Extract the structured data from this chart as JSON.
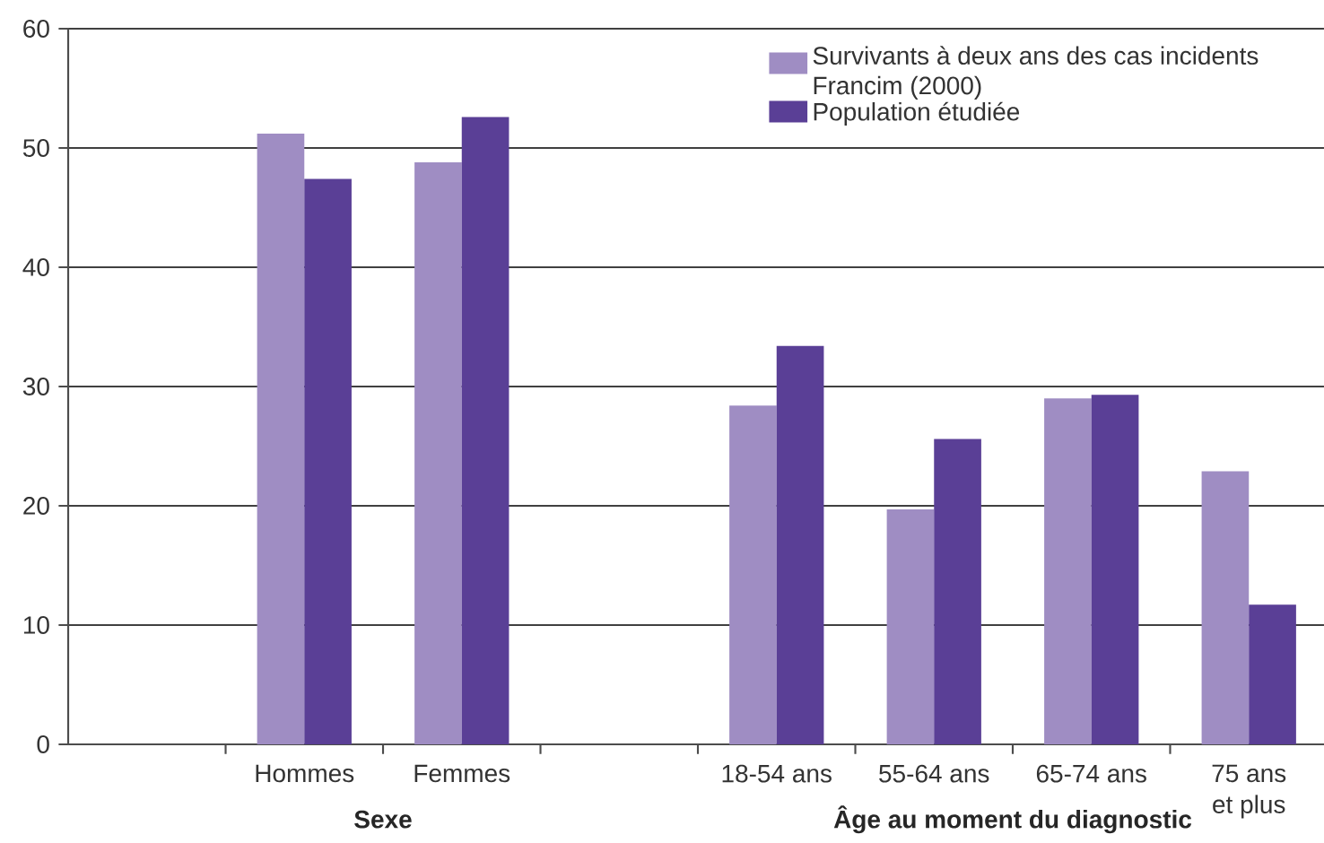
{
  "chart_data": {
    "type": "bar",
    "categories": [
      null,
      "Hommes",
      "Femmes",
      null,
      "18-54 ans",
      "55-64 ans",
      "65-74 ans",
      "75 ans et plus"
    ],
    "series": [
      {
        "name": "Survivants à deux ans des cas incidents Francim (2000)",
        "color": "#9f8dc3",
        "values": [
          null,
          51.2,
          48.8,
          null,
          28.4,
          19.7,
          29.0,
          22.9
        ]
      },
      {
        "name": "Population étudiée",
        "color": "#5a3f96",
        "values": [
          null,
          47.4,
          52.6,
          null,
          33.4,
          25.6,
          29.3,
          11.7
        ]
      }
    ],
    "annotations": [
      "Sexe",
      "Âge au moment du diagnostic"
    ],
    "ylim": [
      0,
      60
    ],
    "yticks": [
      0,
      10,
      20,
      30,
      40,
      50,
      60
    ],
    "grid": "y",
    "legend": "top right"
  }
}
